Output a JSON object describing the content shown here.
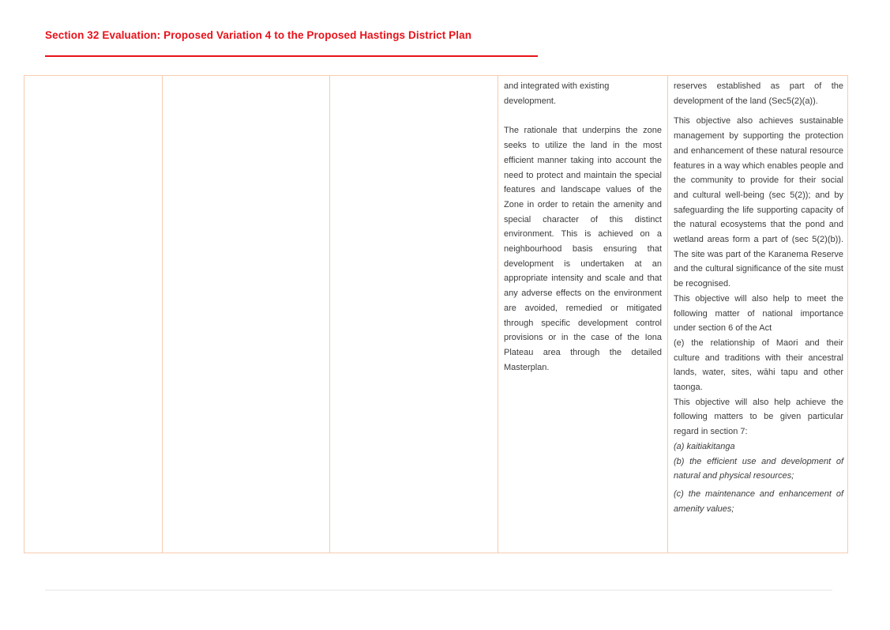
{
  "header": {
    "title": "Section 32 Evaluation: Proposed Variation 4 to the Proposed Hastings District Plan"
  },
  "colors": {
    "title_red": "#e8121a",
    "table_border": "#f8cbad",
    "body_text": "#3b3b3b",
    "footer_rule": "#e6e6e6"
  },
  "table": {
    "cells": [
      {
        "paragraphs": []
      },
      {
        "paragraphs": []
      },
      {
        "paragraphs": []
      },
      {
        "paragraphs": [
          "and integrated with existing development.",
          "The rationale that underpins the zone seeks to utilize the land in the most efficient manner taking into account the need to protect and maintain the special features and landscape values of the Zone in order to retain the amenity and special character of this distinct environment.  This is achieved on a neighbourhood basis ensuring that development is undertaken at an appropriate intensity and scale and that any adverse effects on the environment are avoided, remedied or mitigated through specific development control provisions or in the case of the Iona Plateau area through the detailed Masterplan."
        ]
      },
      {
        "paragraphs": [
          "reserves established as part of the development of the land (Sec5(2)(a)).",
          "This objective also achieves sustainable management by supporting the protection and enhancement of these natural resource features in a way which enables people and the community to provide for their social and cultural well-being (sec 5(2)); and by safeguarding the life supporting capacity of the natural ecosystems that the pond and wetland areas form a part of (sec 5(2)(b)). The site was part of the Karanema Reserve and the cultural significance of the site must be recognised.",
          "This objective will also help to meet the following matter of national importance under section 6 of the Act",
          "(e) the relationship of Maori and their culture and traditions with their ancestral lands, water, sites, wāhi tapu and other taonga.",
          "This objective will also help achieve the following matters to be given particular regard in section 7:",
          "(a) kaitiakitanga",
          "(b) the efficient use and development of natural and physical resources;",
          "(c) the maintenance and enhancement of amenity values;"
        ]
      }
    ]
  }
}
